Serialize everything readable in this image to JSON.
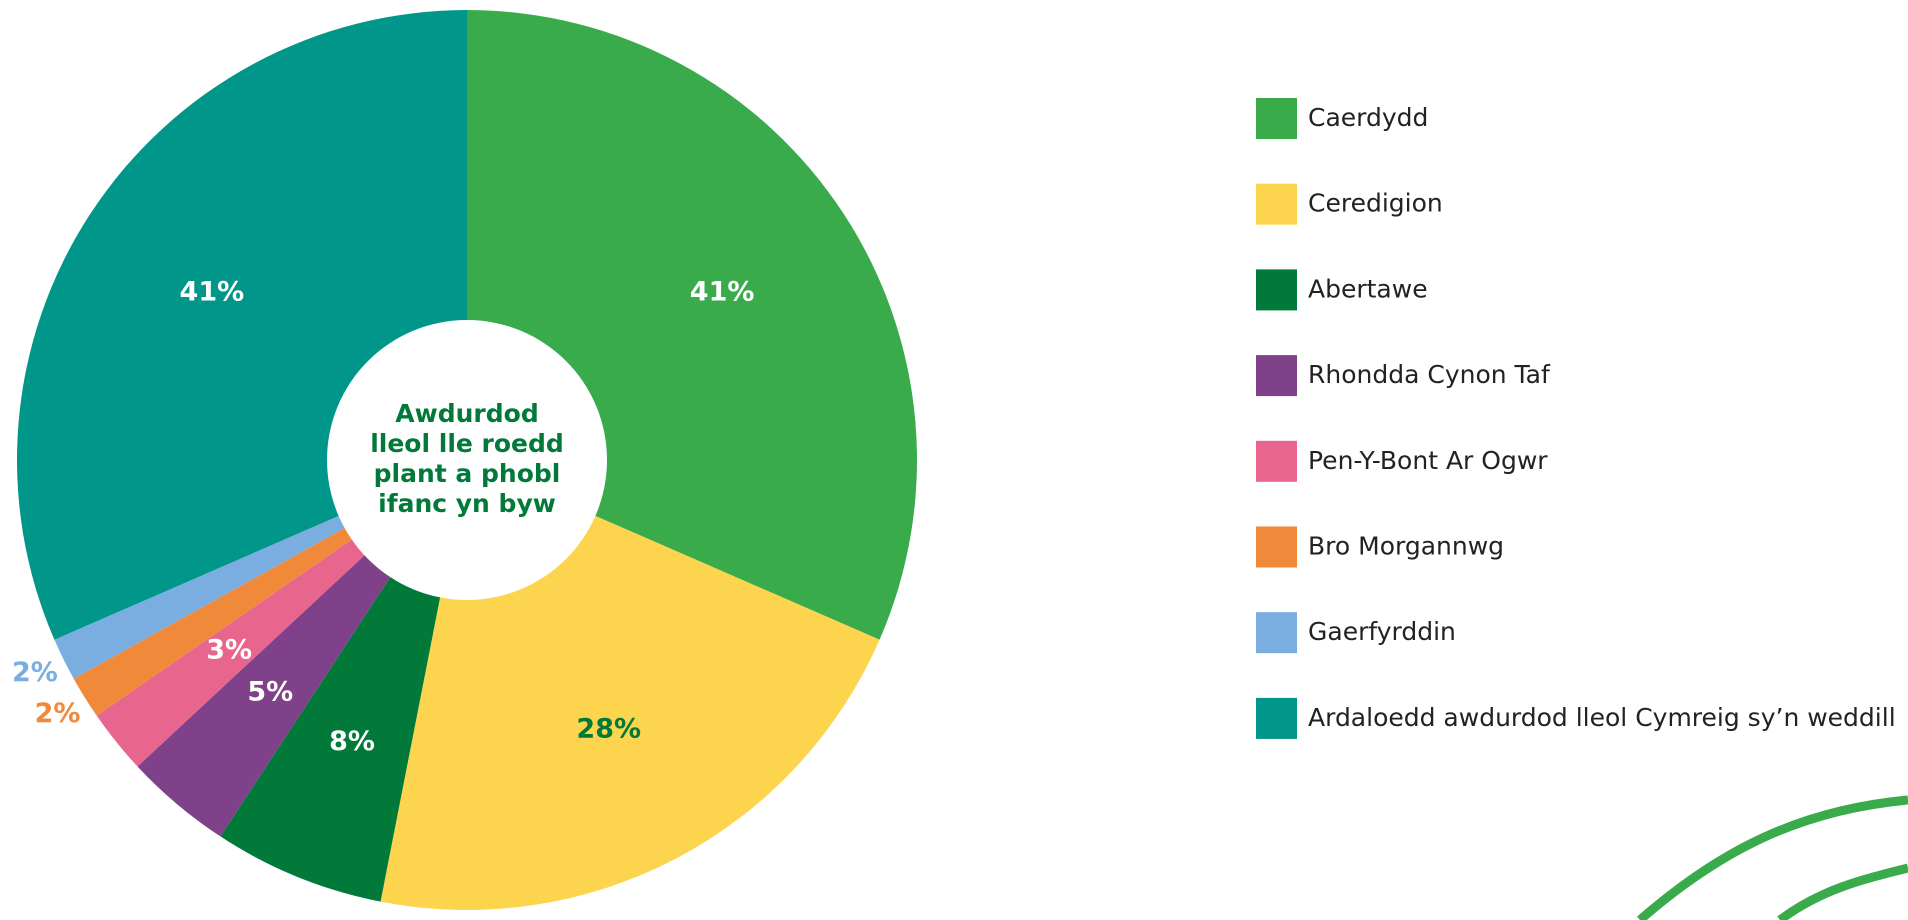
{
  "chart_data": {
    "type": "pie",
    "center_label": [
      "Awdurdod",
      "lleol lle roedd",
      "plant a phobl",
      "ifanc yn byw"
    ],
    "categories": [
      "Caerdydd",
      "Ceredigion",
      "Abertawe",
      "Rhondda Cynon Taf",
      "Pen-Y-Bont Ar Ogwr",
      "Bro Morgannwg",
      "Gaerfyrddin",
      "Ardaloedd awdurdod lleol Cymreig sy’n weddill"
    ],
    "values": [
      41,
      28,
      8,
      5,
      3,
      2,
      2,
      41
    ],
    "value_labels": [
      "41%",
      "28%",
      "8%",
      "5%",
      "3%",
      "2%",
      "2%",
      "41%"
    ],
    "colors": [
      "#3aab4b",
      "#fdd44d",
      "#017a39",
      "#7e418a",
      "#e8668e",
      "#f08a3a",
      "#7aade0",
      "#00968a"
    ],
    "legend": "right"
  }
}
